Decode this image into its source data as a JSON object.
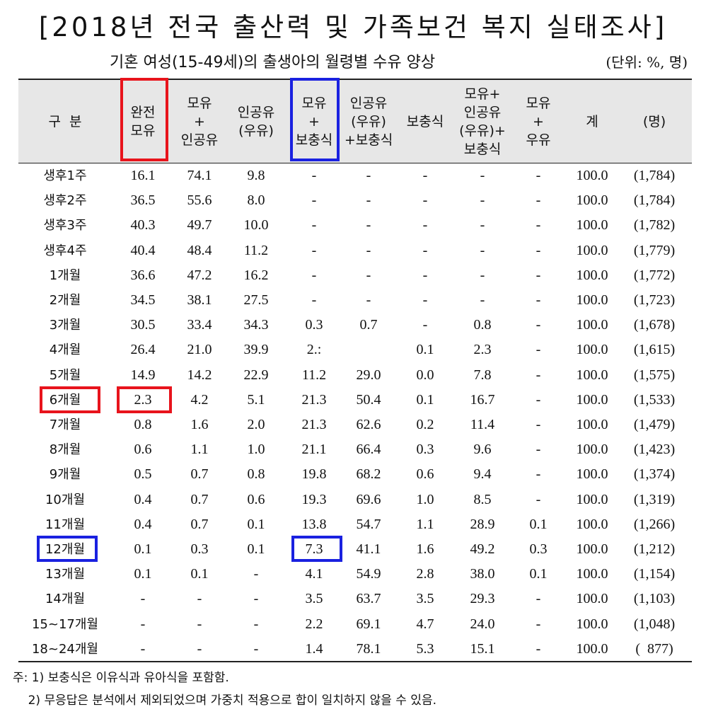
{
  "title": "[2018년 전국 출산력 및 가족보건 복지 실태조사]",
  "subtitle": "기혼 여성(15-49세)의 출생아의 월령별 수유 양상",
  "unit": "(단위: %, 명)",
  "columns": [
    {
      "lines": [
        "구  분"
      ]
    },
    {
      "lines": [
        "완전",
        "모유"
      ]
    },
    {
      "lines": [
        "모유",
        "+",
        "인공유"
      ]
    },
    {
      "lines": [
        "인공유",
        "(우유)"
      ]
    },
    {
      "lines": [
        "모유",
        "+",
        "보충식"
      ]
    },
    {
      "lines": [
        "인공유",
        "(우유)",
        "+보충식"
      ]
    },
    {
      "lines": [
        "보충식"
      ]
    },
    {
      "lines": [
        "모유+",
        "인공유",
        "(우유)+",
        "보충식"
      ]
    },
    {
      "lines": [
        "모유",
        "+",
        "우유"
      ]
    },
    {
      "lines": [
        "계"
      ]
    },
    {
      "lines": [
        "(명)"
      ]
    }
  ],
  "rows": [
    [
      "생후1주",
      "16.1",
      "74.1",
      "9.8",
      "-",
      "-",
      "-",
      "-",
      "-",
      "100.0",
      "(1,784)"
    ],
    [
      "생후2주",
      "36.5",
      "55.6",
      "8.0",
      "-",
      "-",
      "-",
      "-",
      "-",
      "100.0",
      "(1,784)"
    ],
    [
      "생후3주",
      "40.3",
      "49.7",
      "10.0",
      "-",
      "-",
      "-",
      "-",
      "-",
      "100.0",
      "(1,782)"
    ],
    [
      "생후4주",
      "40.4",
      "48.4",
      "11.2",
      "-",
      "-",
      "-",
      "-",
      "-",
      "100.0",
      "(1,779)"
    ],
    [
      "1개월",
      "36.6",
      "47.2",
      "16.2",
      "-",
      "-",
      "-",
      "-",
      "-",
      "100.0",
      "(1,772)"
    ],
    [
      "2개월",
      "34.5",
      "38.1",
      "27.5",
      "-",
      "-",
      "-",
      "-",
      "-",
      "100.0",
      "(1,723)"
    ],
    [
      "3개월",
      "30.5",
      "33.4",
      "34.3",
      "0.3",
      "0.7",
      "-",
      "0.8",
      "-",
      "100.0",
      "(1,678)"
    ],
    [
      "4개월",
      "26.4",
      "21.0",
      "39.9",
      "2.:",
      "",
      "0.1",
      "2.3",
      "-",
      "100.0",
      "(1,615)"
    ],
    [
      "5개월",
      "14.9",
      "14.2",
      "22.9",
      "11.2",
      "29.0",
      "0.0",
      "7.8",
      "-",
      "100.0",
      "(1,575)"
    ],
    [
      "6개월",
      "2.3",
      "4.2",
      "5.1",
      "21.3",
      "50.4",
      "0.1",
      "16.7",
      "-",
      "100.0",
      "(1,533)"
    ],
    [
      "7개월",
      "0.8",
      "1.6",
      "2.0",
      "21.3",
      "62.6",
      "0.2",
      "11.4",
      "-",
      "100.0",
      "(1,479)"
    ],
    [
      "8개월",
      "0.6",
      "1.1",
      "1.0",
      "21.1",
      "66.4",
      "0.3",
      "9.6",
      "-",
      "100.0",
      "(1,423)"
    ],
    [
      "9개월",
      "0.5",
      "0.7",
      "0.8",
      "19.8",
      "68.2",
      "0.6",
      "9.4",
      "-",
      "100.0",
      "(1,374)"
    ],
    [
      "10개월",
      "0.4",
      "0.7",
      "0.6",
      "19.3",
      "69.6",
      "1.0",
      "8.5",
      "-",
      "100.0",
      "(1,319)"
    ],
    [
      "11개월",
      "0.4",
      "0.7",
      "0.1",
      "13.8",
      "54.7",
      "1.1",
      "28.9",
      "0.1",
      "100.0",
      "(1,266)"
    ],
    [
      "12개월",
      "0.1",
      "0.3",
      "0.1",
      "7.3",
      "41.1",
      "1.6",
      "49.2",
      "0.3",
      "100.0",
      "(1,212)"
    ],
    [
      "13개월",
      "0.1",
      "0.1",
      "-",
      "4.1",
      "54.9",
      "2.8",
      "38.0",
      "0.1",
      "100.0",
      "(1,154)"
    ],
    [
      "14개월",
      "-",
      "-",
      "-",
      "3.5",
      "63.7",
      "3.5",
      "29.3",
      "-",
      "100.0",
      "(1,103)"
    ],
    [
      "15~17개월",
      "-",
      "-",
      "-",
      "2.2",
      "69.1",
      "4.7",
      "24.0",
      "-",
      "100.0",
      "(1,048)"
    ],
    [
      "18~24개월",
      "-",
      "-",
      "-",
      "1.4",
      "78.1",
      "5.3",
      "15.1",
      "-",
      "100.0",
      "(  877)"
    ]
  ],
  "notes": [
    "주: 1) 보충식은 이유식과 유아식을 포함함.",
    "    2) 무응답은 분석에서 제외되었으며 가중치 적용으로 합이 일치하지 않을 수 있음."
  ],
  "highlight_colors": {
    "red": "#e8141c",
    "blue": "#1a21e0"
  }
}
